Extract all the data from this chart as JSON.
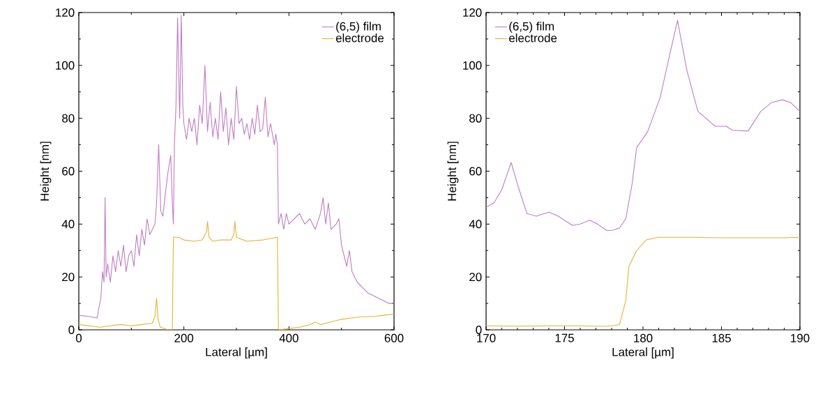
{
  "chart_data": [
    {
      "type": "line",
      "xlabel": "Lateral [µm]",
      "ylabel": "Height [nm]",
      "xlim": [
        0,
        600
      ],
      "ylim": [
        0,
        120
      ],
      "xticks": [
        0,
        200,
        400,
        600
      ],
      "yticks": [
        0,
        20,
        40,
        60,
        80,
        100,
        120
      ],
      "legend": "top right",
      "series": [
        {
          "name": "(6,5) film",
          "color": "#c07cc4",
          "x": [
            0,
            20,
            35,
            38,
            42,
            45,
            48,
            50,
            52,
            55,
            60,
            65,
            70,
            75,
            80,
            85,
            90,
            95,
            100,
            105,
            110,
            115,
            120,
            125,
            130,
            135,
            140,
            145,
            148,
            152,
            156,
            160,
            165,
            170,
            175,
            178,
            180,
            182,
            185,
            188,
            192,
            195,
            198,
            200,
            205,
            210,
            215,
            220,
            225,
            230,
            235,
            240,
            245,
            250,
            255,
            260,
            265,
            270,
            275,
            280,
            285,
            290,
            295,
            300,
            305,
            310,
            315,
            320,
            325,
            330,
            335,
            340,
            345,
            350,
            355,
            360,
            365,
            372,
            375,
            378,
            380,
            385,
            390,
            395,
            400,
            410,
            420,
            430,
            440,
            450,
            460,
            465,
            470,
            475,
            480,
            490,
            495,
            500,
            505,
            510,
            515,
            520,
            530,
            540,
            550,
            560,
            570,
            580,
            590,
            600
          ],
          "values": [
            5.5,
            5,
            4.5,
            8,
            12,
            22,
            18,
            50,
            20,
            25,
            18,
            28,
            22,
            30,
            24,
            32,
            22,
            28,
            30,
            24,
            36,
            28,
            38,
            32,
            42,
            36,
            38,
            40,
            48,
            70,
            45,
            43,
            52,
            60,
            66,
            48,
            40,
            70,
            85,
            118,
            80,
            119,
            85,
            78,
            72,
            80,
            75,
            80,
            70,
            85,
            78,
            100,
            75,
            86,
            73,
            80,
            72,
            90,
            75,
            84,
            70,
            80,
            72,
            92,
            78,
            80,
            74,
            78,
            72,
            80,
            74,
            85,
            75,
            76,
            88,
            73,
            78,
            70,
            74,
            70,
            40,
            44,
            38,
            44,
            40,
            42,
            44,
            40,
            42,
            38,
            44,
            50,
            40,
            48,
            38,
            40,
            42,
            32,
            28,
            24,
            30,
            22,
            18,
            16,
            14,
            13,
            12,
            11,
            10,
            10
          ]
        },
        {
          "name": "electrode",
          "color": "#e8b030",
          "x": [
            0,
            20,
            40,
            60,
            80,
            100,
            120,
            140,
            145,
            148,
            151,
            155,
            170,
            178,
            180,
            190,
            200,
            220,
            235,
            243,
            245,
            248,
            255,
            270,
            290,
            295,
            297,
            300,
            320,
            350,
            378,
            380,
            400,
            420,
            440,
            450,
            460,
            480,
            500,
            520,
            540,
            560,
            580,
            600
          ],
          "values": [
            2,
            1.5,
            1,
            1.5,
            2,
            1.5,
            2,
            2.5,
            5,
            12,
            4,
            1,
            0,
            0,
            35,
            35,
            34,
            33.5,
            34,
            37,
            41,
            35,
            33.5,
            34,
            34,
            36,
            41,
            35,
            33.5,
            34,
            35,
            0,
            0.5,
            1,
            2,
            3,
            2,
            3,
            4,
            4.5,
            5,
            5,
            5.5,
            6
          ]
        }
      ]
    },
    {
      "type": "line",
      "xlabel": "Lateral [µm]",
      "ylabel": "Height [nm]",
      "xlim": [
        170,
        190
      ],
      "ylim": [
        0,
        120
      ],
      "xticks": [
        170,
        175,
        180,
        185,
        190
      ],
      "yticks": [
        0,
        20,
        40,
        60,
        80,
        100,
        120
      ],
      "legend": "top left",
      "series": [
        {
          "name": "(6,5) film",
          "color": "#c07cc4",
          "x": [
            170,
            170.5,
            171,
            171.6,
            172,
            172.6,
            173.2,
            174,
            174.6,
            175.5,
            176,
            176.6,
            177.1,
            177.7,
            178.1,
            178.5,
            178.9,
            179.3,
            179.6,
            180.3,
            181.1,
            181.7,
            182.2,
            182.8,
            183.5,
            184.6,
            185.3,
            185.7,
            186.7,
            187.5,
            188.2,
            188.9,
            189.4,
            190
          ],
          "values": [
            46.4,
            48,
            53,
            63.3,
            55,
            44,
            43,
            44.5,
            43,
            39.5,
            40,
            41.5,
            40,
            37.5,
            37.7,
            38.5,
            42,
            55,
            69,
            75,
            88,
            104,
            117,
            98,
            82.6,
            77,
            77,
            75.5,
            75.2,
            82.6,
            86,
            87,
            86,
            82.6
          ]
        },
        {
          "name": "electrode",
          "color": "#e8b030",
          "x": [
            170,
            172,
            174,
            176,
            177.5,
            178,
            178.5,
            178.9,
            179.1,
            179.6,
            180.2,
            181,
            183,
            185,
            187,
            189,
            190
          ],
          "values": [
            1.5,
            1.4,
            1.5,
            1.5,
            1.3,
            1.5,
            2,
            11,
            24,
            30,
            34,
            35,
            35,
            34.8,
            34.8,
            34.8,
            35
          ]
        }
      ]
    }
  ]
}
